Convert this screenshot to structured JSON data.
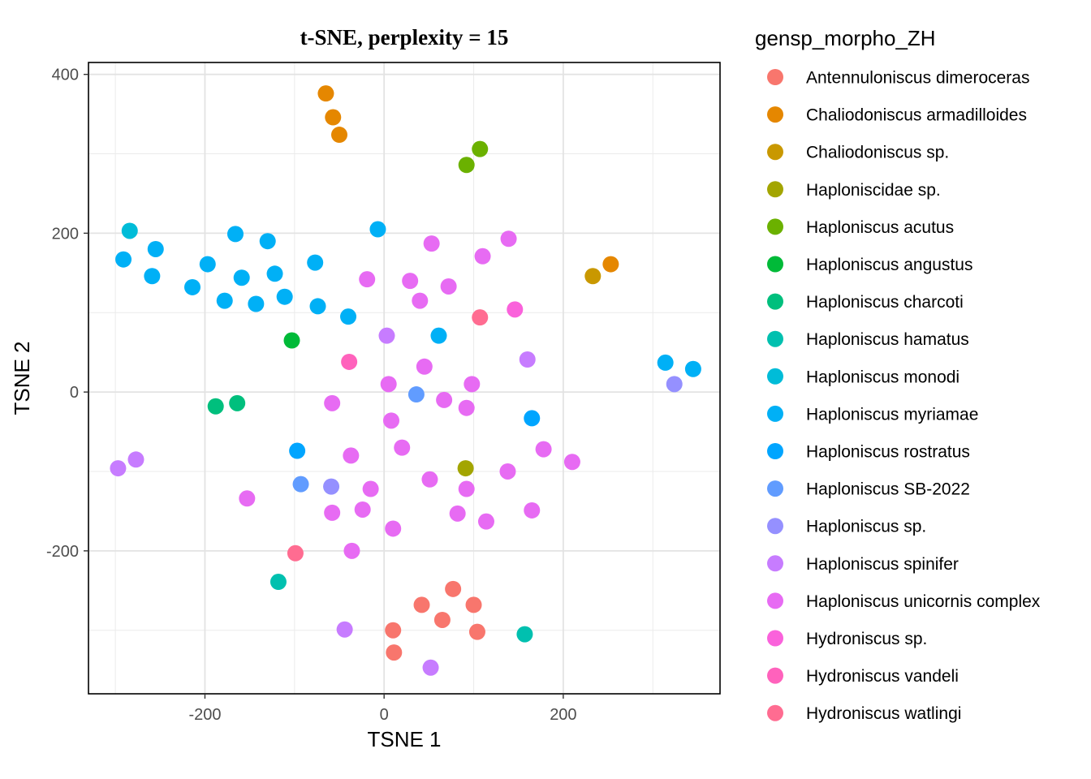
{
  "chart_data": {
    "type": "scatter",
    "title": "t-SNE, perplexity = 15",
    "xlabel": "TSNE 1",
    "ylabel": "TSNE 2",
    "xlim": [
      -330,
      375
    ],
    "ylim": [
      -380,
      415
    ],
    "x_ticks": [
      -200,
      0,
      200
    ],
    "x_tick_labels": [
      "-200",
      "0",
      "200"
    ],
    "y_ticks": [
      -200,
      0,
      200,
      400
    ],
    "y_tick_labels": [
      "-200",
      "0",
      "200",
      "400"
    ],
    "grid": true,
    "legend_title": "gensp_morpho_ZH",
    "legend_position": "right",
    "series": [
      {
        "name": "Antennuloniscus dimeroceras",
        "color": "#F8766D",
        "points": [
          [
            42,
            -268
          ],
          [
            77,
            -248
          ],
          [
            100,
            -268
          ],
          [
            65,
            -287
          ],
          [
            10,
            -300
          ],
          [
            104,
            -302
          ],
          [
            11,
            -328
          ]
        ]
      },
      {
        "name": "Chaliodoniscus armadilloides",
        "color": "#E58700",
        "points": [
          [
            -65,
            376
          ],
          [
            -57,
            346
          ],
          [
            -50,
            324
          ],
          [
            253,
            161
          ]
        ]
      },
      {
        "name": "Chaliodoniscus sp.",
        "color": "#C99800",
        "points": [
          [
            233,
            146
          ]
        ]
      },
      {
        "name": "Haploniscidae sp.",
        "color": "#A3A500",
        "points": [
          [
            91,
            -96
          ]
        ]
      },
      {
        "name": "Haploniscus acutus",
        "color": "#6BB100",
        "points": [
          [
            107,
            306
          ],
          [
            92,
            286
          ]
        ]
      },
      {
        "name": "Haploniscus angustus",
        "color": "#00BA38",
        "points": [
          [
            -103,
            65
          ]
        ]
      },
      {
        "name": "Haploniscus charcoti",
        "color": "#00BF7D",
        "points": [
          [
            -188,
            -18
          ],
          [
            -164,
            -14
          ]
        ]
      },
      {
        "name": "Haploniscus hamatus",
        "color": "#00C0AF",
        "points": [
          [
            -118,
            -239
          ],
          [
            157,
            -305
          ]
        ]
      },
      {
        "name": "Haploniscus monodi",
        "color": "#00BCD8",
        "points": [
          [
            -284,
            203
          ]
        ]
      },
      {
        "name": "Haploniscus myriamae",
        "color": "#00B0F6",
        "points": [
          [
            -291,
            167
          ],
          [
            -255,
            180
          ],
          [
            -259,
            146
          ],
          [
            -197,
            161
          ],
          [
            -214,
            132
          ],
          [
            -166,
            199
          ],
          [
            -159,
            144
          ],
          [
            -178,
            115
          ],
          [
            -130,
            190
          ],
          [
            -122,
            149
          ],
          [
            -143,
            111
          ],
          [
            -111,
            120
          ],
          [
            -77,
            163
          ],
          [
            -74,
            108
          ],
          [
            -40,
            95
          ],
          [
            -7,
            205
          ],
          [
            61,
            71
          ],
          [
            314,
            37
          ],
          [
            345,
            29
          ]
        ]
      },
      {
        "name": "Haploniscus rostratus",
        "color": "#00A5FF",
        "points": [
          [
            -97,
            -74
          ],
          [
            165,
            -33
          ]
        ]
      },
      {
        "name": "Haploniscus SB-2022",
        "color": "#619CFF",
        "points": [
          [
            -93,
            -116
          ],
          [
            36,
            -3
          ]
        ]
      },
      {
        "name": "Haploniscus sp.",
        "color": "#9590FF",
        "points": [
          [
            -59,
            -119
          ],
          [
            324,
            10
          ]
        ]
      },
      {
        "name": "Haploniscus spinifer",
        "color": "#C77CFF",
        "points": [
          [
            -297,
            -96
          ],
          [
            -277,
            -85
          ],
          [
            3,
            71
          ],
          [
            160,
            41
          ],
          [
            -44,
            -299
          ],
          [
            52,
            -347
          ]
        ]
      },
      {
        "name": "Haploniscus unicornis complex",
        "color": "#E76BF3",
        "points": [
          [
            53,
            187
          ],
          [
            110,
            171
          ],
          [
            139,
            193
          ],
          [
            -19,
            142
          ],
          [
            29,
            140
          ],
          [
            72,
            133
          ],
          [
            40,
            115
          ],
          [
            45,
            32
          ],
          [
            5,
            10
          ],
          [
            98,
            10
          ],
          [
            -58,
            -14
          ],
          [
            67,
            -10
          ],
          [
            92,
            -20
          ],
          [
            8,
            -36
          ],
          [
            20,
            -70
          ],
          [
            178,
            -72
          ],
          [
            210,
            -88
          ],
          [
            -37,
            -80
          ],
          [
            138,
            -100
          ],
          [
            51,
            -110
          ],
          [
            -15,
            -122
          ],
          [
            92,
            -122
          ],
          [
            -153,
            -134
          ],
          [
            -58,
            -152
          ],
          [
            -24,
            -148
          ],
          [
            82,
            -153
          ],
          [
            114,
            -163
          ],
          [
            165,
            -149
          ],
          [
            10,
            -172
          ],
          [
            -36,
            -200
          ]
        ]
      },
      {
        "name": "Hydroniscus sp.",
        "color": "#FA62DB",
        "points": [
          [
            146,
            104
          ]
        ]
      },
      {
        "name": "Hydroniscus vandeli",
        "color": "#FF62BC",
        "points": [
          [
            -39,
            38
          ]
        ]
      },
      {
        "name": "Hydroniscus watlingi",
        "color": "#FF6C91",
        "points": [
          [
            107,
            94
          ],
          [
            -99,
            -203
          ]
        ]
      }
    ]
  }
}
